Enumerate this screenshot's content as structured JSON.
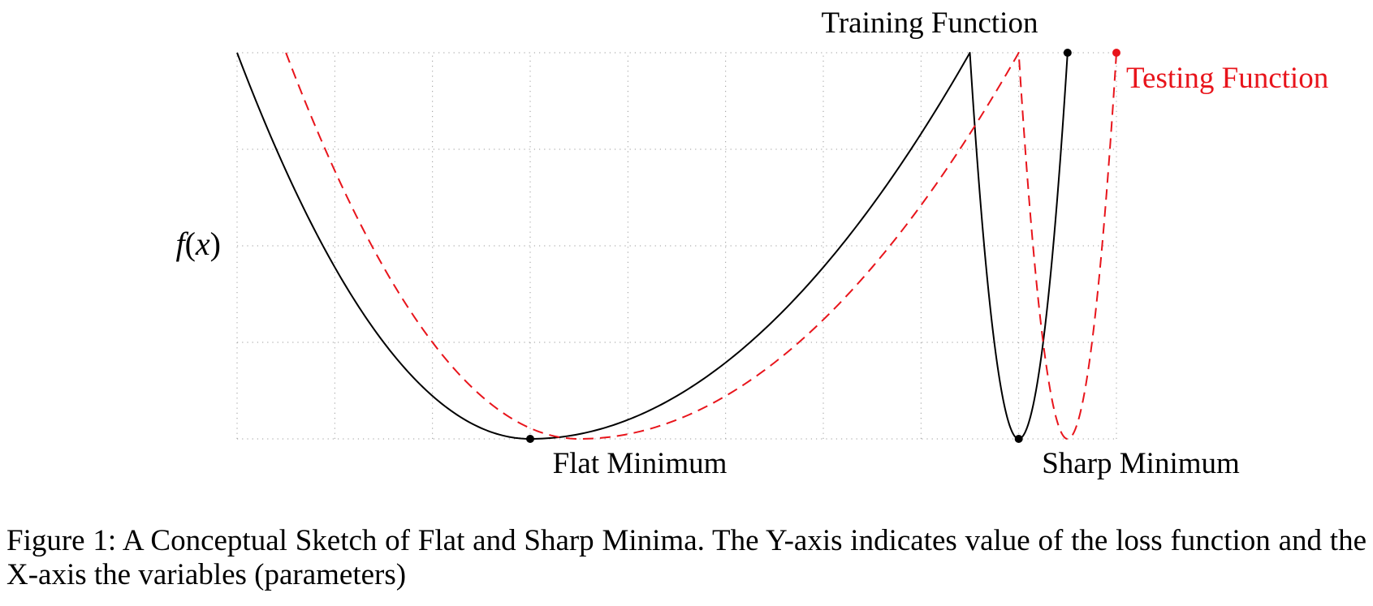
{
  "chart_data": {
    "type": "line",
    "title": "",
    "xlabel": "",
    "ylabel": "f(x)",
    "xlim": [
      0,
      9
    ],
    "ylim": [
      0,
      4
    ],
    "grid": true,
    "grid_style": "dotted",
    "x_grid_step": 1,
    "y_grid_step": 1,
    "series": [
      {
        "name": "Training Function",
        "color": "#000000",
        "style": "solid",
        "segments": [
          {
            "shape": "parabola",
            "x_start": 0,
            "x_end": 7.5,
            "vertex_x": 3,
            "vertex_y": 0,
            "left_y": 4,
            "right_y": 4
          },
          {
            "shape": "parabola",
            "x_start": 7.5,
            "x_end": 8.5,
            "vertex_x": 8,
            "vertex_y": 0,
            "left_y": 4,
            "right_y": 4
          }
        ]
      },
      {
        "name": "Testing Function",
        "color": "#e8141b",
        "style": "dashed",
        "segments": [
          {
            "shape": "parabola",
            "x_start": 0.5,
            "x_end": 8,
            "vertex_x": 3.5,
            "vertex_y": 0,
            "left_y": 4,
            "right_y": 4
          },
          {
            "shape": "parabola",
            "x_start": 8,
            "x_end": 9,
            "vertex_x": 8.5,
            "vertex_y": 0,
            "left_y": 4,
            "right_y": 4
          }
        ]
      }
    ],
    "points": [
      {
        "x": 3,
        "y": 0,
        "series": "Training Function"
      },
      {
        "x": 8,
        "y": 0,
        "series": "Training Function"
      },
      {
        "x": 8.5,
        "y": 4,
        "series": "Training Function"
      },
      {
        "x": 9,
        "y": 4,
        "series": "Testing Function"
      }
    ],
    "annotations": {
      "flat_minimum": "Flat Minimum",
      "sharp_minimum": "Sharp Minimum",
      "training_label": "Training Function",
      "testing_label": "Testing Function",
      "y_label_base": "f",
      "y_label_var": "x"
    }
  },
  "caption": "Figure 1: A Conceptual Sketch of Flat and Sharp Minima. The Y-axis indicates value of the loss function and the X-axis the variables (parameters)"
}
